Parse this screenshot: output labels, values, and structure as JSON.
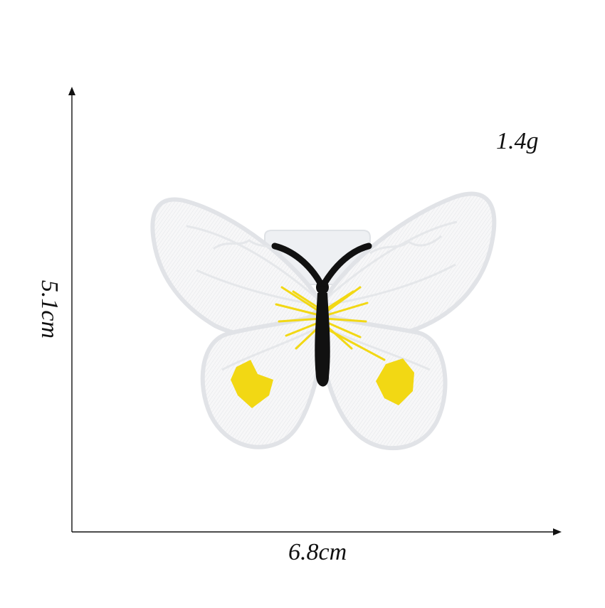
{
  "product_image": {
    "subject": "embroidered-butterfly-patch-icon",
    "weight_label": "1.4g",
    "width_label": "6.8cm",
    "height_label": "5.1cm",
    "colors": {
      "background": "#ffffff",
      "patch_fill": "#f6f6f6",
      "patch_border": "#e4e6ea",
      "body": "#111111",
      "accent_yellow": "#f2d814",
      "axis": "#111111"
    }
  }
}
